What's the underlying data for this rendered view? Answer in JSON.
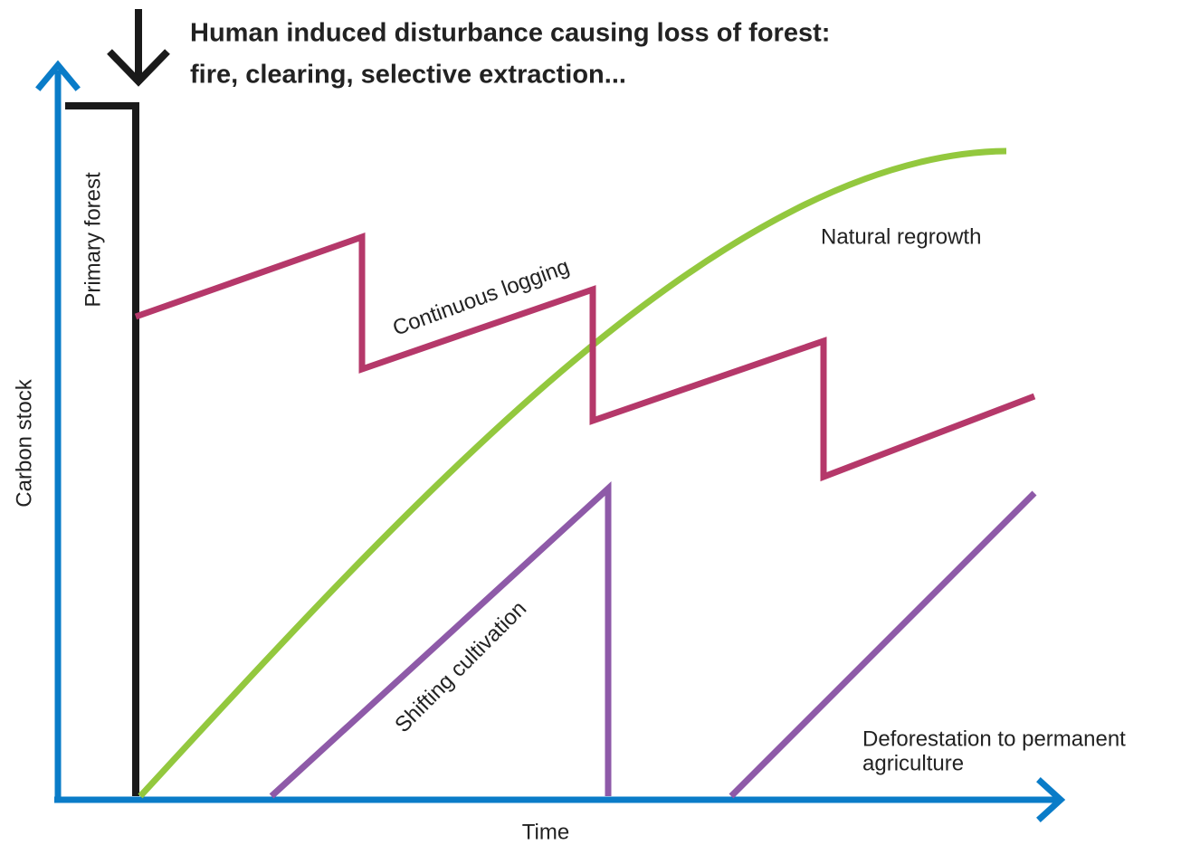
{
  "title": [
    "Human induced disturbance causing loss of forest:",
    "fire, clearing, selective extraction..."
  ],
  "y_axis_label": "Carbon stock",
  "x_axis_label": "Time",
  "labels": {
    "primary_forest": "Primary forest",
    "continuous_logging": "Continuous logging",
    "natural_regrowth": "Natural regrowth",
    "shifting_cultivation": "Shifting cultivation",
    "deforestation": [
      "Deforestation to permanent",
      "agriculture"
    ]
  }
}
